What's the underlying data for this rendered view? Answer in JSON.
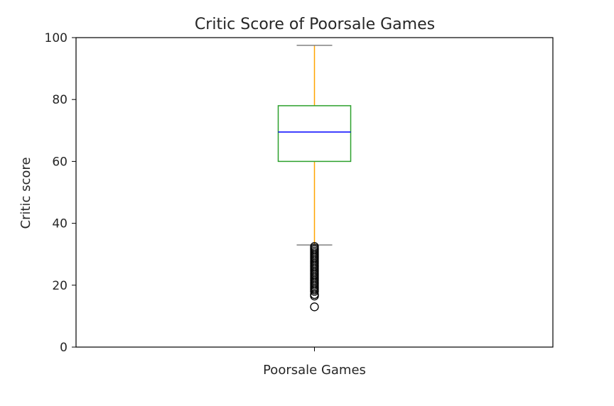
{
  "chart_data": {
    "type": "box",
    "title": "Critic Score of Poorsale Games",
    "xlabel": "",
    "ylabel": "Critic score",
    "categories": [
      "Poorsale Games"
    ],
    "ylim": [
      0,
      100
    ],
    "yticks": [
      0,
      20,
      40,
      60,
      80,
      100
    ],
    "grid": false,
    "box": {
      "whisker_low": 33,
      "q1": 60,
      "median": 69.5,
      "q3": 78,
      "whisker_high": 97.5,
      "outliers": [
        32.5,
        32,
        31.5,
        31,
        30.5,
        30,
        29.5,
        29,
        28.5,
        28,
        27.5,
        27,
        26.5,
        26,
        25.5,
        25,
        24.5,
        24,
        23.5,
        23,
        22.5,
        22,
        21.5,
        21,
        20.5,
        20,
        19.5,
        19,
        18.5,
        18,
        17,
        16.5,
        13
      ]
    },
    "colors": {
      "box": "#2ca02c",
      "median": "#0000ff",
      "whisker": "#ffa500",
      "cap": "#808080",
      "outlier_edge": "#000000"
    }
  }
}
